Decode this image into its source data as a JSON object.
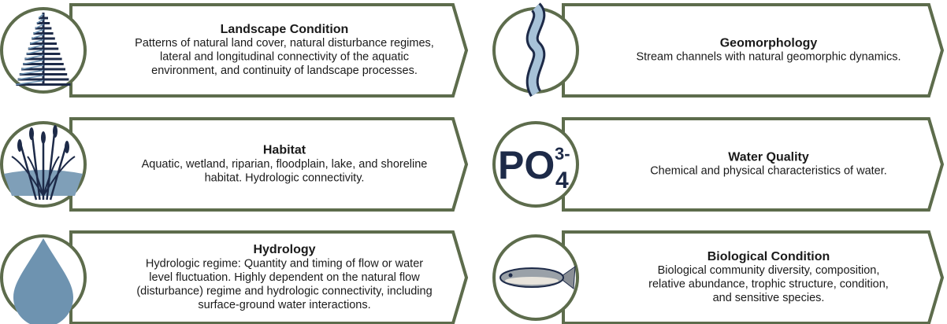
{
  "cards": [
    {
      "title": "Landscape Condition",
      "lines": [
        "Patterns of natural land cover, natural disturbance regimes,",
        "lateral and longitudinal connectivity of the aquatic",
        "environment, and continuity of landscape processes."
      ]
    },
    {
      "title": "Habitat",
      "lines": [
        "Aquatic, wetland, riparian, floodplain, lake, and shoreline",
        "habitat. Hydrologic connectivity."
      ]
    },
    {
      "title": "Hydrology",
      "lines": [
        "Hydrologic regime: Quantity and timing of flow or water",
        "level fluctuation. Highly dependent on the natural flow",
        "(disturbance) regime and hydrologic connectivity, including",
        "surface-ground water interactions."
      ]
    },
    {
      "title": "Geomorphology",
      "lines": [
        "Stream channels with natural geomorphic dynamics."
      ]
    },
    {
      "title": "Water Quality",
      "lines": [
        "Chemical and physical characteristics of water."
      ],
      "icon_text": {
        "main": "PO",
        "sub": "4",
        "sup": "3-"
      }
    },
    {
      "title": "Biological Condition",
      "lines": [
        "Biological community diversity, composition,",
        "relative abundance, trophic structure, condition,",
        "and sensitive species."
      ]
    }
  ]
}
